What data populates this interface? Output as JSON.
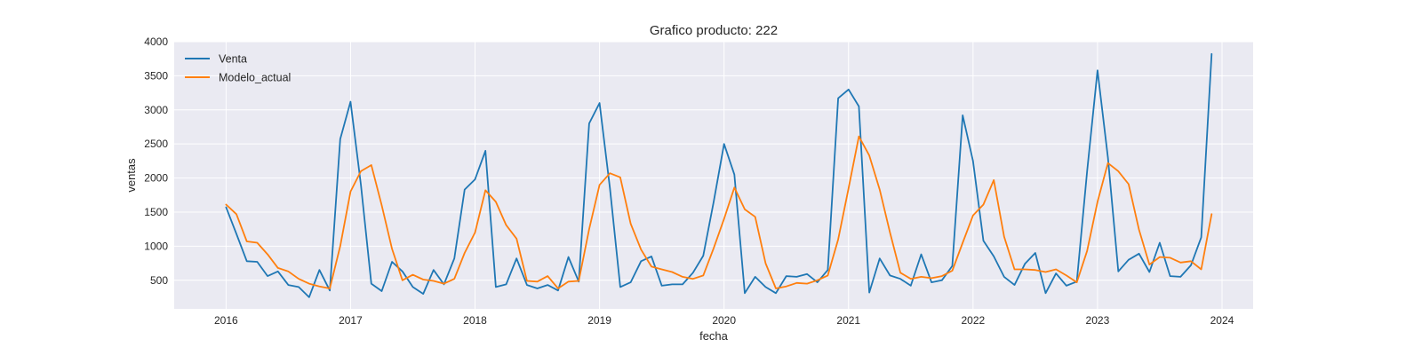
{
  "chart_data": {
    "type": "line",
    "title": "Grafico producto: 222",
    "xlabel": "fecha",
    "ylabel": "ventas",
    "x_start": "2016-01",
    "x_frequency": "monthly",
    "xlim": [
      "2015-08",
      "2024-04"
    ],
    "ylim": [
      80,
      4000
    ],
    "xticks": [
      "2016",
      "2017",
      "2018",
      "2019",
      "2020",
      "2021",
      "2022",
      "2023",
      "2024"
    ],
    "yticks": [
      500,
      1000,
      1500,
      2000,
      2500,
      3000,
      3500,
      4000
    ],
    "grid": true,
    "legend_position": "top-left",
    "background_color": "#eaeaf2",
    "series": [
      {
        "name": "Venta",
        "color": "#1f77b4",
        "values": [
          1570,
          1180,
          780,
          770,
          560,
          630,
          430,
          400,
          250,
          650,
          350,
          2570,
          3120,
          1900,
          450,
          340,
          770,
          630,
          400,
          300,
          650,
          440,
          820,
          1830,
          1980,
          2400,
          400,
          440,
          820,
          430,
          380,
          430,
          350,
          840,
          480,
          2800,
          3100,
          1850,
          400,
          470,
          780,
          850,
          420,
          440,
          440,
          610,
          860,
          1650,
          2500,
          2050,
          310,
          550,
          400,
          310,
          560,
          550,
          590,
          470,
          650,
          3170,
          3300,
          3050,
          320,
          820,
          570,
          520,
          420,
          880,
          470,
          500,
          710,
          2920,
          2250,
          1080,
          850,
          550,
          430,
          740,
          900,
          310,
          600,
          420,
          480,
          2100,
          3580,
          2300,
          630,
          800,
          890,
          620,
          1050,
          560,
          550,
          720,
          1130,
          3820
        ]
      },
      {
        "name": "Modelo_actual",
        "color": "#ff7f0e",
        "values": [
          1610,
          1470,
          1070,
          1050,
          880,
          680,
          630,
          520,
          450,
          410,
          380,
          1000,
          1800,
          2100,
          2190,
          1600,
          960,
          500,
          580,
          510,
          490,
          450,
          520,
          900,
          1200,
          1820,
          1650,
          1310,
          1110,
          490,
          480,
          560,
          380,
          480,
          490,
          1250,
          1900,
          2070,
          2010,
          1330,
          950,
          700,
          660,
          620,
          550,
          520,
          570,
          970,
          1400,
          1860,
          1540,
          1430,
          750,
          380,
          410,
          460,
          450,
          500,
          570,
          1100,
          1850,
          2610,
          2330,
          1830,
          1200,
          610,
          520,
          550,
          530,
          560,
          640,
          1050,
          1450,
          1610,
          1970,
          1140,
          660,
          660,
          650,
          620,
          660,
          570,
          470,
          930,
          1650,
          2220,
          2100,
          1910,
          1240,
          730,
          840,
          830,
          760,
          780,
          660,
          1470
        ]
      }
    ]
  }
}
